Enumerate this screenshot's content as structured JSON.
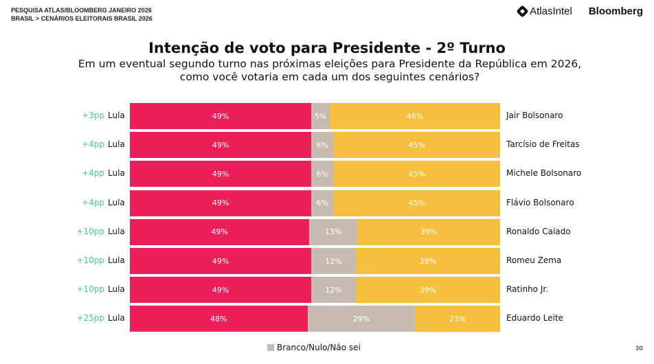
{
  "header": {
    "line1": "PESQUISA ATLAS/BLOOMBERG JANEIRO 2026",
    "line2": "BRASIL > CENÁRIOS ELEITORAIS BRASIL 2026",
    "logo_atlas": "AtlasIntel",
    "logo_bloomberg": "Bloomberg"
  },
  "page_number": "30",
  "chart_data": {
    "type": "bar",
    "orientation": "horizontal-stacked-100",
    "title": "Intenção de voto para Presidente - 2º Turno",
    "subtitle": "Em um eventual segundo turno nas próximas eleições para Presidente da República em 2026, como você votaria em cada um dos seguintes cenários?",
    "colors": {
      "left": "#ec1f5d",
      "blank": "#c5bab2",
      "right": "#f6be3e",
      "margin": "#4cbf9f"
    },
    "legend": "Branco/Nulo/Não sei",
    "rows": [
      {
        "margin": "+3pp",
        "left": "Lula",
        "left_value": 49,
        "blank_value": 5,
        "right_value": 46,
        "right": "Jair Bolsonaro"
      },
      {
        "margin": "+4pp",
        "left": "Lula",
        "left_value": 49,
        "blank_value": 6,
        "right_value": 45,
        "right": "Tarcísio de Freitas"
      },
      {
        "margin": "+4pp",
        "left": "Lula",
        "left_value": 49,
        "blank_value": 6,
        "right_value": 45,
        "right": "Michele Bolsonaro"
      },
      {
        "margin": "+4pp",
        "left": "Lula",
        "left_value": 49,
        "blank_value": 6,
        "right_value": 45,
        "right": "Flávio Bolsonaro"
      },
      {
        "margin": "+10pp",
        "left": "Lula",
        "left_value": 49,
        "blank_value": 13,
        "right_value": 39,
        "right": "Ronaldo Caiado"
      },
      {
        "margin": "+10pp",
        "left": "Lula",
        "left_value": 49,
        "blank_value": 12,
        "right_value": 39,
        "right": "Romeu Zema"
      },
      {
        "margin": "+10pp",
        "left": "Lula",
        "left_value": 49,
        "blank_value": 12,
        "right_value": 39,
        "right": "Ratinho Jr."
      },
      {
        "margin": "+25pp",
        "left": "Lula",
        "left_value": 48,
        "blank_value": 29,
        "right_value": 23,
        "right": "Eduardo Leite"
      }
    ]
  }
}
